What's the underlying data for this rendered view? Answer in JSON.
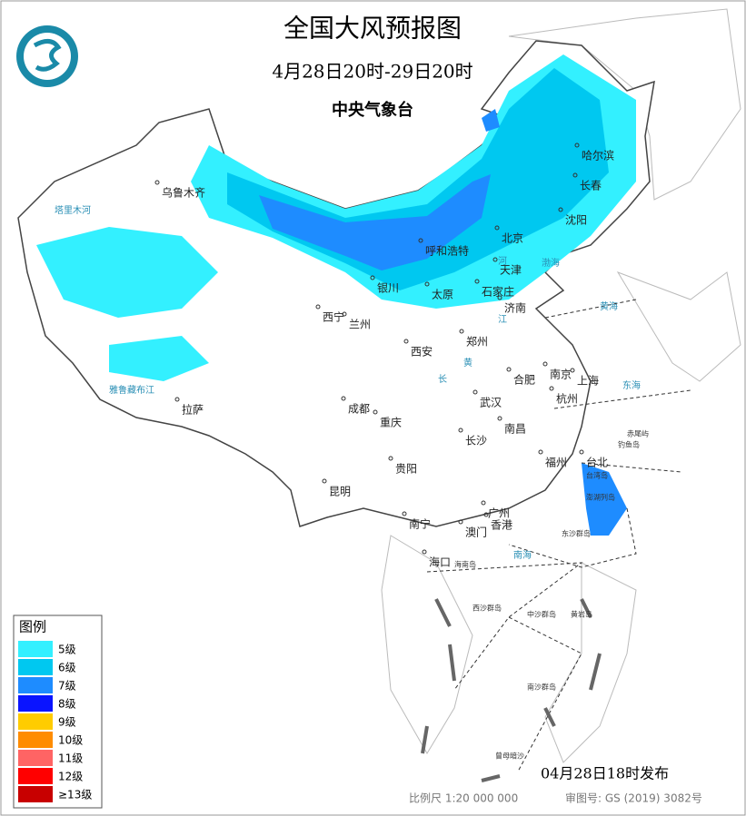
{
  "header": {
    "title": "全国大风预报图",
    "period": "4月28日20时-29日20时",
    "issuer": "中央气象台"
  },
  "legend": {
    "title": "图例",
    "items": [
      {
        "label": "5级",
        "color": "#33f0ff"
      },
      {
        "label": "6级",
        "color": "#00c8f0"
      },
      {
        "label": "7级",
        "color": "#1e8cff"
      },
      {
        "label": "8级",
        "color": "#0a14ff"
      },
      {
        "label": "9级",
        "color": "#ffcc00"
      },
      {
        "label": "10级",
        "color": "#ff8c00"
      },
      {
        "label": "11级",
        "color": "#ff6464"
      },
      {
        "label": "12级",
        "color": "#ff0000"
      },
      {
        "label": "≥13级",
        "color": "#c80000"
      }
    ]
  },
  "cities": [
    "乌鲁木齐",
    "哈尔滨",
    "长春",
    "沈阳",
    "北京",
    "天津",
    "呼和浩特",
    "银川",
    "太原",
    "石家庄",
    "济南",
    "西宁",
    "兰州",
    "西安",
    "郑州",
    "合肥",
    "南京",
    "上海",
    "杭州",
    "武汉",
    "成都",
    "重庆",
    "拉萨",
    "南昌",
    "长沙",
    "贵阳",
    "福州",
    "台北",
    "昆明",
    "南宁",
    "广州",
    "澳门",
    "香港",
    "海口"
  ],
  "geo_labels": [
    "渤海",
    "黄海",
    "东海",
    "南海",
    "长",
    "江",
    "黄",
    "河",
    "塔里木河",
    "雅鲁藏布江"
  ],
  "islands": [
    "台湾岛",
    "澎湖列岛",
    "赤尾屿",
    "钓鱼岛",
    "东沙群岛",
    "海南岛",
    "西沙群岛",
    "中沙群岛",
    "黄岩岛",
    "南沙群岛",
    "曾母暗沙"
  ],
  "footer": {
    "issued": "04月28日18时发布",
    "scale": "比例尺 1:20 000 000",
    "approval": "审图号: GS (2019) 3082号"
  }
}
